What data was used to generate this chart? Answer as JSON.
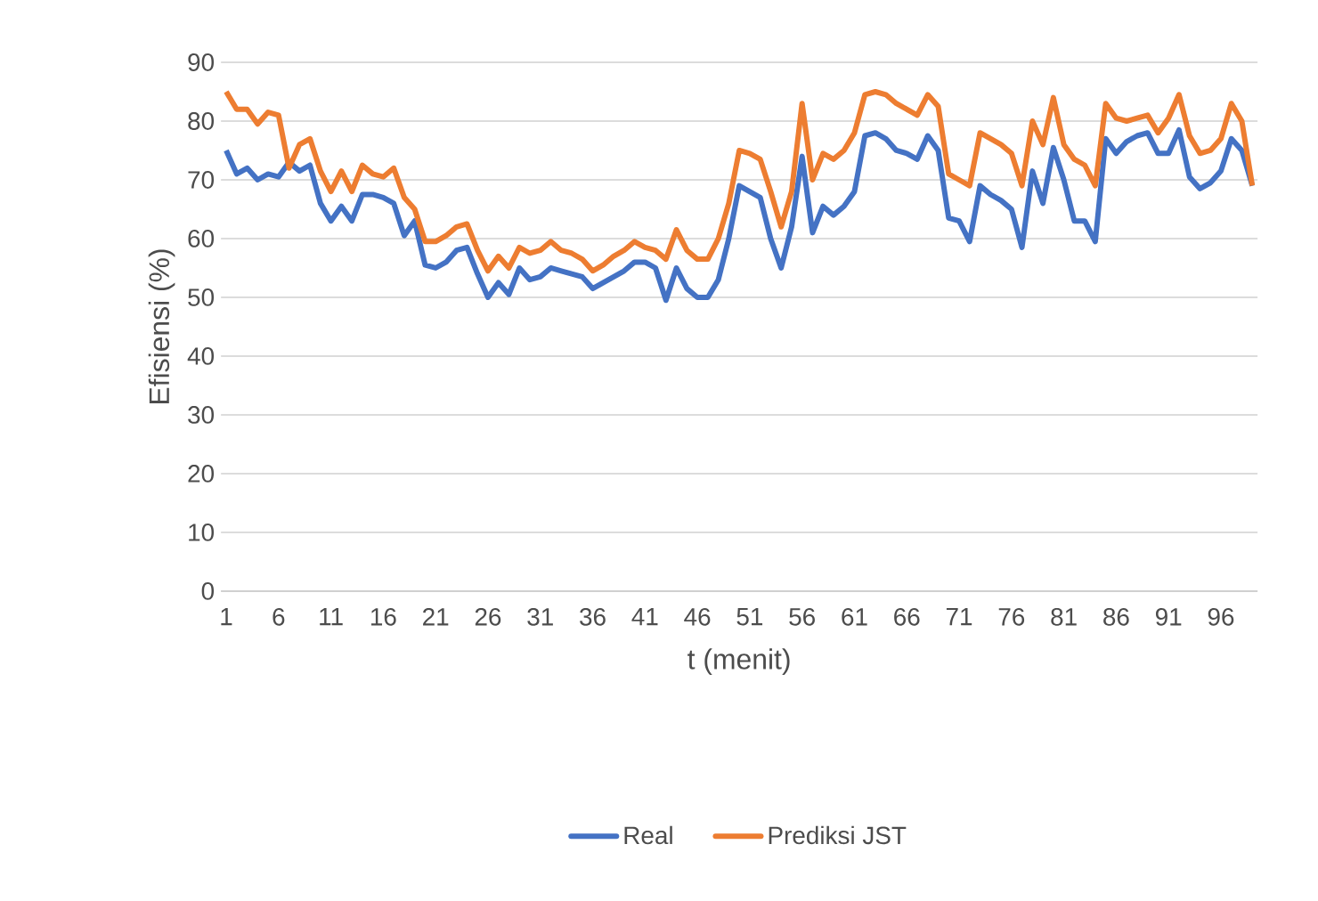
{
  "chart_data": {
    "type": "line",
    "xlabel": "t (menit)",
    "ylabel": "Efisiensi (%)",
    "categories": [
      "1",
      null,
      null,
      null,
      null,
      "6",
      null,
      null,
      null,
      null,
      "11",
      null,
      null,
      null,
      null,
      "16",
      null,
      null,
      null,
      null,
      "21",
      null,
      null,
      null,
      null,
      "26",
      null,
      null,
      null,
      null,
      "31",
      null,
      null,
      null,
      null,
      "36",
      null,
      null,
      null,
      null,
      "41",
      null,
      null,
      null,
      null,
      "46",
      null,
      null,
      null,
      null,
      "51",
      null,
      null,
      null,
      null,
      "56",
      null,
      null,
      null,
      null,
      "61",
      null,
      null,
      null,
      null,
      "66",
      null,
      null,
      null,
      null,
      "71",
      null,
      null,
      null,
      null,
      "76",
      null,
      null,
      null,
      null,
      "81",
      null,
      null,
      null,
      null,
      "86",
      null,
      null,
      null,
      null,
      "91",
      null,
      null,
      null,
      null,
      "96",
      null,
      null,
      null
    ],
    "series": [
      {
        "name": "Real",
        "color": "#4472c4",
        "values": [
          75,
          71,
          72,
          70,
          71,
          70.5,
          73,
          71.5,
          72.5,
          66,
          63,
          65.5,
          63,
          67.5,
          67.5,
          67,
          66,
          60.5,
          63,
          55.5,
          55,
          56,
          58,
          58.5,
          54,
          50,
          52.5,
          50.5,
          55,
          53,
          53.5,
          55,
          54.5,
          54,
          53.5,
          51.5,
          52.5,
          53.5,
          54.5,
          56,
          56,
          55,
          49.5,
          55,
          51.5,
          50,
          50,
          53,
          60,
          69,
          68,
          67,
          60,
          55,
          62,
          74,
          61,
          65.5,
          64,
          65.5,
          68,
          77.5,
          78,
          77,
          75,
          74.5,
          73.5,
          77.5,
          75,
          63.5,
          63,
          59.5,
          69,
          67.5,
          66.5,
          65,
          58.5,
          71.5,
          66,
          75.5,
          70,
          63,
          63,
          59.5,
          77,
          74.5,
          76.5,
          77.5,
          78,
          74.5,
          74.5,
          78.5,
          70.5,
          68.5,
          69.5,
          71.5,
          77,
          75,
          69
        ]
      },
      {
        "name": "Prediksi JST",
        "color": "#ed7d31",
        "values": [
          85,
          82,
          82,
          79.5,
          81.5,
          81,
          72,
          76,
          77,
          71.5,
          68,
          71.5,
          68,
          72.5,
          71,
          70.5,
          72,
          67,
          65,
          59.5,
          59.5,
          60.5,
          62,
          62.5,
          58,
          54.5,
          57,
          55,
          58.5,
          57.5,
          58,
          59.5,
          58,
          57.5,
          56.5,
          54.5,
          55.5,
          57,
          58,
          59.5,
          58.5,
          58,
          56.5,
          61.5,
          58,
          56.5,
          56.5,
          60,
          66,
          75,
          74.5,
          73.5,
          68,
          62,
          68,
          83,
          70,
          74.5,
          73.5,
          75,
          78,
          84.5,
          85,
          84.5,
          83,
          82,
          81,
          84.5,
          82.5,
          71,
          70,
          69,
          78,
          77,
          76,
          74.5,
          69,
          80,
          76,
          84,
          76,
          73.5,
          72.5,
          69,
          83,
          80.5,
          80,
          80.5,
          81,
          78,
          80.5,
          84.5,
          77.5,
          74.5,
          75,
          77,
          83,
          80,
          69
        ]
      }
    ],
    "ylim": [
      0,
      90
    ],
    "yticks": [
      0,
      10,
      20,
      30,
      40,
      50,
      60,
      70,
      80,
      90
    ],
    "grid": "y",
    "legend": "bottom",
    "marker": "none",
    "line_style": "solid"
  }
}
